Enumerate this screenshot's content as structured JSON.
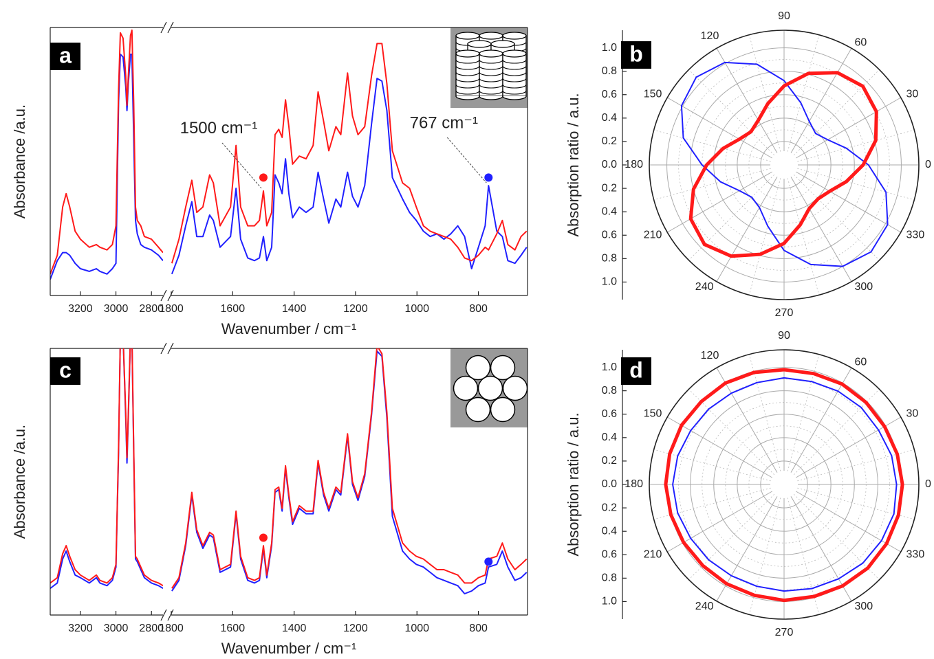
{
  "chart_data": [
    {
      "type": "line",
      "panel_label": "a",
      "ylabel": "Absorbance /a.u.",
      "xlabel": "Wavenumber / cm⁻¹",
      "ylim": [
        0,
        1
      ],
      "segments": [
        {
          "xlim": [
            3370,
            2735
          ],
          "xticks": [
            3200,
            3000,
            2800
          ],
          "x": [
            3370,
            3330,
            3300,
            3280,
            3260,
            3230,
            3200,
            3150,
            3110,
            3090,
            3050,
            3020,
            3000,
            2985,
            2975,
            2960,
            2945,
            2938,
            2930,
            2918,
            2910,
            2900,
            2890,
            2880,
            2860,
            2840,
            2800,
            2760,
            2735
          ],
          "series": [
            {
              "color": "#ff1a1a",
              "values": [
                0.08,
                0.15,
                0.33,
                0.38,
                0.33,
                0.24,
                0.21,
                0.18,
                0.19,
                0.18,
                0.17,
                0.19,
                0.26,
                0.77,
                0.98,
                0.96,
                0.82,
                0.71,
                0.82,
                0.97,
                0.99,
                0.72,
                0.33,
                0.28,
                0.26,
                0.22,
                0.21,
                0.18,
                0.16
              ]
            },
            {
              "color": "#2020ff",
              "values": [
                0.06,
                0.13,
                0.16,
                0.16,
                0.15,
                0.12,
                0.1,
                0.09,
                0.1,
                0.09,
                0.08,
                0.1,
                0.12,
                0.72,
                0.9,
                0.89,
                0.78,
                0.69,
                0.79,
                0.9,
                0.9,
                0.59,
                0.28,
                0.23,
                0.19,
                0.18,
                0.17,
                0.15,
                0.13
              ]
            }
          ]
        },
        {
          "xlim": [
            1800,
            640
          ],
          "xticks": [
            1800,
            1600,
            1400,
            1200,
            1000,
            800
          ],
          "x": [
            1798,
            1775,
            1753,
            1733,
            1717,
            1697,
            1675,
            1663,
            1641,
            1607,
            1589,
            1574,
            1551,
            1529,
            1513,
            1500,
            1489,
            1473,
            1462,
            1450,
            1439,
            1428,
            1417,
            1405,
            1383,
            1361,
            1338,
            1322,
            1304,
            1287,
            1264,
            1248,
            1226,
            1210,
            1192,
            1170,
            1148,
            1130,
            1114,
            1098,
            1080,
            1047,
            1024,
            1002,
            979,
            957,
            935,
            912,
            890,
            867,
            845,
            822,
            800,
            778,
            767,
            740,
            722,
            704,
            681,
            661,
            643
          ],
          "series": [
            {
              "color": "#ff1a1a",
              "values": [
                0.12,
                0.21,
                0.33,
                0.43,
                0.31,
                0.33,
                0.45,
                0.42,
                0.26,
                0.33,
                0.56,
                0.33,
                0.26,
                0.26,
                0.28,
                0.39,
                0.26,
                0.31,
                0.6,
                0.62,
                0.59,
                0.73,
                0.63,
                0.49,
                0.52,
                0.51,
                0.56,
                0.76,
                0.65,
                0.54,
                0.63,
                0.6,
                0.83,
                0.67,
                0.6,
                0.63,
                0.82,
                0.94,
                0.94,
                0.79,
                0.54,
                0.42,
                0.4,
                0.33,
                0.26,
                0.24,
                0.23,
                0.22,
                0.21,
                0.18,
                0.14,
                0.13,
                0.15,
                0.18,
                0.17,
                0.23,
                0.28,
                0.19,
                0.17,
                0.22,
                0.24
              ]
            },
            {
              "color": "#2020ff",
              "values": [
                0.08,
                0.15,
                0.26,
                0.35,
                0.22,
                0.22,
                0.3,
                0.28,
                0.18,
                0.22,
                0.4,
                0.21,
                0.14,
                0.13,
                0.14,
                0.22,
                0.13,
                0.18,
                0.45,
                0.42,
                0.38,
                0.51,
                0.38,
                0.29,
                0.33,
                0.31,
                0.33,
                0.46,
                0.36,
                0.27,
                0.36,
                0.33,
                0.46,
                0.37,
                0.33,
                0.41,
                0.64,
                0.81,
                0.8,
                0.69,
                0.44,
                0.36,
                0.31,
                0.28,
                0.24,
                0.22,
                0.23,
                0.21,
                0.23,
                0.26,
                0.22,
                0.1,
                0.18,
                0.26,
                0.41,
                0.24,
                0.22,
                0.13,
                0.12,
                0.15,
                0.18
              ]
            }
          ],
          "markers": [
            {
              "x": 1500,
              "y": 0.44,
              "color": "#ff1a1a"
            },
            {
              "x": 767,
              "y": 0.44,
              "color": "#2020ff"
            }
          ],
          "annotations": [
            {
              "text": "1500 cm⁻¹",
              "x": 1500,
              "y": 0.39
            },
            {
              "text": "767 cm⁻¹",
              "x": 767,
              "y": 0.41
            }
          ]
        }
      ]
    },
    {
      "type": "polar",
      "panel_label": "b",
      "ylabel": "Absorption ratio / a.u.",
      "rlim": [
        0,
        1.15
      ],
      "rticks": [
        {
          "value": 0,
          "label": "0.0"
        },
        0.2,
        0.4,
        0.6,
        0.8,
        {
          "value": 1,
          "label": "1.0"
        }
      ],
      "thetaticks": [
        0,
        30,
        60,
        90,
        120,
        150,
        180,
        210,
        240,
        270,
        300,
        330
      ],
      "theta": [
        0,
        15,
        30,
        45,
        60,
        75,
        90,
        105,
        120,
        135,
        150,
        165,
        180,
        195,
        210,
        225,
        240,
        255,
        270,
        285,
        300,
        315,
        330,
        345
      ],
      "series": [
        {
          "color": "#ff1a1a",
          "values": [
            0.675,
            0.81,
            0.91,
            0.95,
            0.91,
            0.81,
            0.675,
            0.54,
            0.44,
            0.4,
            0.44,
            0.54,
            0.66,
            0.8,
            0.92,
            0.96,
            0.9,
            0.79,
            0.67,
            0.53,
            0.43,
            0.41,
            0.45,
            0.55
          ]
        },
        {
          "color": "#2020ff",
          "values": [
            0.72,
            0.55,
            0.43,
            0.38,
            0.43,
            0.55,
            0.72,
            0.89,
            1.01,
            1.06,
            1.01,
            0.89,
            0.7,
            0.56,
            0.44,
            0.39,
            0.42,
            0.54,
            0.73,
            0.88,
            1.0,
            1.05,
            1.02,
            0.9
          ]
        }
      ]
    },
    {
      "type": "line",
      "panel_label": "c",
      "ylabel": "Absorbance /a.u.",
      "xlabel": "Wavenumber / cm⁻¹",
      "ylim": [
        0,
        1
      ],
      "segments": [
        {
          "xlim": [
            3370,
            2735
          ],
          "xticks": [
            3200,
            3000,
            2800
          ],
          "x": [
            3370,
            3330,
            3300,
            3280,
            3260,
            3230,
            3200,
            3150,
            3110,
            3090,
            3050,
            3020,
            3000,
            2985,
            2975,
            2960,
            2945,
            2938,
            2930,
            2918,
            2910,
            2900,
            2890,
            2880,
            2860,
            2840,
            2800,
            2760,
            2735
          ],
          "series": [
            {
              "color": "#ff1a1a",
              "values": [
                0.12,
                0.14,
                0.23,
                0.26,
                0.22,
                0.17,
                0.15,
                0.13,
                0.15,
                0.13,
                0.12,
                0.14,
                0.19,
                0.63,
                1.05,
                1.05,
                0.76,
                0.59,
                0.76,
                1.05,
                1.05,
                0.63,
                0.22,
                0.21,
                0.18,
                0.15,
                0.13,
                0.12,
                0.11
              ]
            },
            {
              "color": "#2020ff",
              "values": [
                0.1,
                0.12,
                0.21,
                0.24,
                0.2,
                0.15,
                0.14,
                0.12,
                0.14,
                0.12,
                0.11,
                0.13,
                0.18,
                0.61,
                1.05,
                1.05,
                0.74,
                0.57,
                0.74,
                1.05,
                1.05,
                0.61,
                0.21,
                0.2,
                0.17,
                0.14,
                0.12,
                0.11,
                0.1
              ]
            }
          ]
        },
        {
          "xlim": [
            1800,
            640
          ],
          "xticks": [
            1800,
            1600,
            1400,
            1200,
            1000,
            800
          ],
          "x": [
            1798,
            1775,
            1753,
            1733,
            1717,
            1697,
            1675,
            1663,
            1641,
            1607,
            1589,
            1574,
            1551,
            1529,
            1513,
            1500,
            1489,
            1473,
            1462,
            1450,
            1439,
            1428,
            1417,
            1405,
            1383,
            1361,
            1338,
            1322,
            1304,
            1287,
            1264,
            1248,
            1226,
            1210,
            1192,
            1170,
            1148,
            1130,
            1114,
            1098,
            1080,
            1047,
            1024,
            1002,
            979,
            957,
            935,
            912,
            890,
            867,
            845,
            822,
            800,
            778,
            767,
            740,
            722,
            704,
            681,
            661,
            643
          ],
          "series": [
            {
              "color": "#ff1a1a",
              "values": [
                0.1,
                0.14,
                0.27,
                0.46,
                0.32,
                0.26,
                0.31,
                0.3,
                0.17,
                0.19,
                0.39,
                0.22,
                0.14,
                0.13,
                0.14,
                0.26,
                0.15,
                0.27,
                0.47,
                0.48,
                0.4,
                0.56,
                0.45,
                0.35,
                0.41,
                0.39,
                0.39,
                0.58,
                0.46,
                0.4,
                0.48,
                0.46,
                0.68,
                0.5,
                0.44,
                0.53,
                0.76,
                1.01,
                0.98,
                0.76,
                0.4,
                0.27,
                0.24,
                0.22,
                0.21,
                0.19,
                0.17,
                0.17,
                0.16,
                0.15,
                0.12,
                0.12,
                0.14,
                0.15,
                0.21,
                0.22,
                0.27,
                0.21,
                0.17,
                0.19,
                0.21
              ]
            },
            {
              "color": "#2020ff",
              "values": [
                0.09,
                0.13,
                0.26,
                0.45,
                0.31,
                0.25,
                0.3,
                0.29,
                0.16,
                0.18,
                0.38,
                0.21,
                0.13,
                0.12,
                0.13,
                0.25,
                0.14,
                0.26,
                0.46,
                0.47,
                0.39,
                0.55,
                0.44,
                0.34,
                0.4,
                0.38,
                0.38,
                0.57,
                0.45,
                0.39,
                0.47,
                0.45,
                0.67,
                0.49,
                0.43,
                0.52,
                0.75,
                0.99,
                0.97,
                0.74,
                0.37,
                0.24,
                0.21,
                0.19,
                0.18,
                0.16,
                0.14,
                0.13,
                0.12,
                0.11,
                0.08,
                0.09,
                0.11,
                0.12,
                0.18,
                0.19,
                0.24,
                0.18,
                0.13,
                0.14,
                0.16
              ]
            }
          ],
          "markers": [
            {
              "x": 1500,
              "y": 0.29,
              "color": "#ff1a1a"
            },
            {
              "x": 767,
              "y": 0.2,
              "color": "#2020ff"
            }
          ]
        }
      ]
    },
    {
      "type": "polar",
      "panel_label": "d",
      "ylabel": "Absorption ratio / a.u.",
      "rlim": [
        0,
        1.15
      ],
      "rticks": [
        {
          "value": 0,
          "label": "0.0"
        },
        0.2,
        0.4,
        0.6,
        0.8,
        {
          "value": 1,
          "label": "1.0"
        }
      ],
      "thetaticks": [
        0,
        30,
        60,
        90,
        120,
        150,
        180,
        210,
        240,
        270,
        300,
        330
      ],
      "theta": [
        0,
        15,
        30,
        45,
        60,
        75,
        90,
        105,
        120,
        135,
        150,
        165,
        180,
        195,
        210,
        225,
        240,
        255,
        270,
        285,
        300,
        315,
        330,
        345
      ],
      "series": [
        {
          "color": "#ff1a1a",
          "values": [
            1.01,
            1.0,
            0.99,
            0.99,
            0.99,
            0.98,
            0.98,
            0.99,
            1.0,
            1.0,
            1.01,
            1.01,
            1.01,
            1.0,
            0.99,
            0.98,
            0.98,
            0.98,
            0.99,
            0.99,
            1.0,
            1.01,
            1.01,
            1.01
          ]
        },
        {
          "color": "#2020ff",
          "values": [
            0.96,
            0.95,
            0.93,
            0.93,
            0.92,
            0.91,
            0.91,
            0.9,
            0.9,
            0.91,
            0.92,
            0.94,
            0.95,
            0.94,
            0.92,
            0.91,
            0.9,
            0.9,
            0.91,
            0.92,
            0.93,
            0.95,
            0.96,
            0.97
          ]
        }
      ]
    }
  ]
}
